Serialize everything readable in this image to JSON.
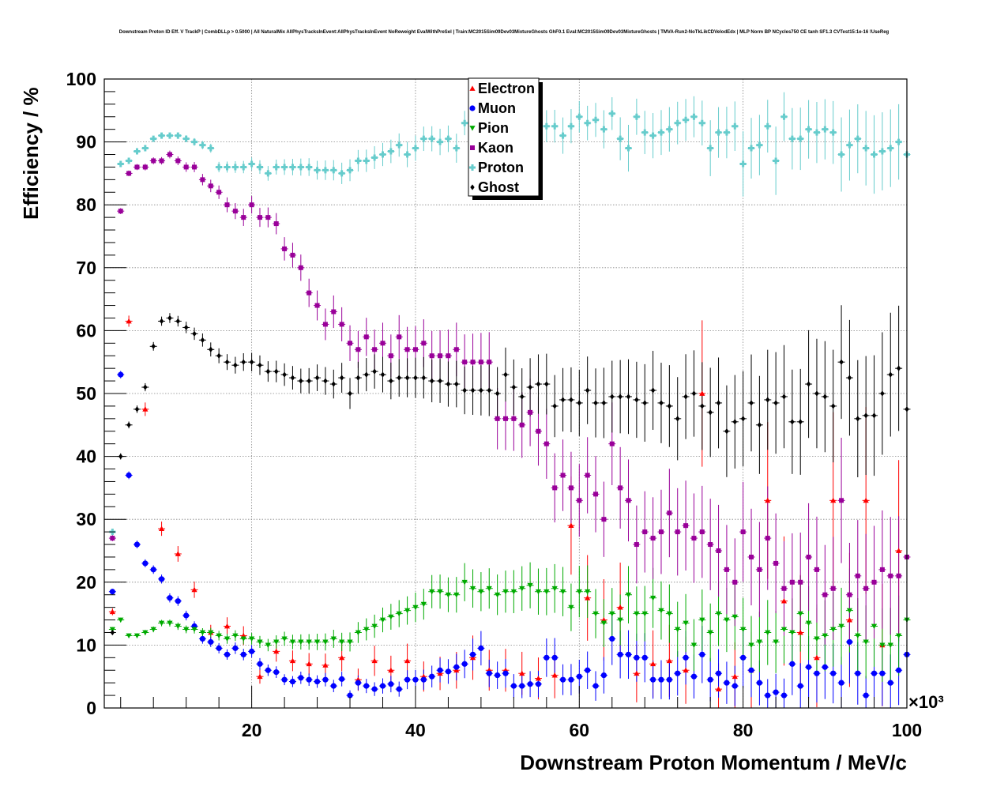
{
  "chart_data": {
    "type": "scatter",
    "title": "Downstream Proton ID Eff. V TrackP | CombDLLp > 0.5000 | All NaturalMix AllPhysTracksInEvent:AllPhysTracksInEvent NoReweight EvalWithPreSel | Train:MC2015Sim09Dev03MixtureGhosts GhF0.1 Eval:MC2015Sim09Dev03MixtureGhosts | TMVA-Run2-NoTkLikCDVelodEdx | MLP Norm BP NCycles750 CE tanh SF1.3 CVTest15:1e-16 !UseReg",
    "xlabel": "Downstream Proton Momentum / MeV/c",
    "ylabel": "Efficiency / %",
    "x_multiplier_label": "×10³",
    "xlim": [
      2000,
      100000
    ],
    "ylim": [
      0,
      100
    ],
    "xticks": [
      20000,
      40000,
      60000,
      80000,
      100000
    ],
    "xtick_labels": [
      "20",
      "40",
      "60",
      "80",
      "100"
    ],
    "yticks": [
      0,
      10,
      20,
      30,
      40,
      50,
      60,
      70,
      80,
      90,
      100
    ],
    "grid": true,
    "legend_position": "top-center",
    "series": [
      {
        "name": "Electron",
        "color": "#ff0000",
        "marker": "triangle-up",
        "x": [
          3000,
          5000,
          7000,
          9000,
          11000,
          13000,
          15000,
          17000,
          19000,
          21000,
          23000,
          25000,
          27000,
          29000,
          31000,
          33000,
          35000,
          37000,
          39000,
          41000,
          43000,
          45000,
          47000,
          49000,
          51000,
          53000,
          55000,
          57000,
          59000,
          61000,
          63000,
          65000,
          67000,
          69000,
          71000,
          73000,
          75000,
          77000,
          79000,
          81000,
          83000,
          85000,
          87000,
          89000,
          91000,
          93000,
          95000,
          97000,
          99000
        ],
        "y": [
          15.3,
          61.5,
          47.5,
          28.5,
          24.5,
          18.8,
          12,
          13,
          11.5,
          5,
          9,
          7.5,
          7,
          6.8,
          8,
          4.5,
          7.5,
          6,
          7.5,
          5,
          5.5,
          6,
          8,
          6,
          6,
          5.5,
          4.7,
          5.2,
          29,
          17.5,
          14,
          16,
          5.5,
          7,
          7.5,
          6,
          50,
          3,
          5,
          6,
          33,
          17,
          12,
          8,
          33,
          14,
          33,
          10,
          25
        ]
      },
      {
        "name": "Muon",
        "color": "#0000ff",
        "marker": "circle",
        "x": [
          3000,
          4000,
          5000,
          6000,
          7000,
          8000,
          9000,
          10000,
          11000,
          12000,
          13000,
          14000,
          15000,
          16000,
          17000,
          18000,
          19000,
          20000,
          21000,
          22000,
          23000,
          24000,
          25000,
          26000,
          27000,
          28000,
          29000,
          30000,
          31000,
          32000,
          33000,
          34000,
          35000,
          36000,
          37000,
          38000,
          39000,
          40000,
          41000,
          42000,
          43000,
          44000,
          45000,
          46000,
          47000,
          48000,
          49000,
          50000,
          51000,
          52000,
          53000,
          54000,
          55000,
          56000,
          57000,
          58000,
          59000,
          60000,
          61000,
          62000,
          63000,
          64000,
          65000,
          66000,
          67000,
          68000,
          69000,
          70000,
          71000,
          72000,
          73000,
          74000,
          75000,
          76000,
          77000,
          78000,
          79000,
          80000,
          81000,
          82000,
          83000,
          84000,
          85000,
          86000,
          87000,
          88000,
          89000,
          90000,
          91000,
          92000,
          93000,
          94000,
          95000,
          96000,
          97000,
          98000,
          99000,
          100000
        ],
        "y": [
          18.5,
          53,
          37,
          26,
          23,
          22,
          20.5,
          17.5,
          17,
          14.7,
          13,
          11,
          10.5,
          9.5,
          8.5,
          9.5,
          8.5,
          9,
          7,
          6,
          5.7,
          4.5,
          4.2,
          4.8,
          4.5,
          4.2,
          4.5,
          3.5,
          4.6,
          2,
          4,
          3.5,
          3,
          3.5,
          3.8,
          3,
          4.5,
          4.5,
          4.5,
          5,
          6,
          5.8,
          6.5,
          7,
          8.5,
          9.5,
          5.5,
          5.2,
          5.5,
          3.5,
          3.5,
          3.8,
          3.8,
          8,
          8,
          4.5,
          4.5,
          5,
          6,
          3.5,
          5.2,
          11,
          8.5,
          8.5,
          8,
          8,
          4.5,
          4.5,
          4.5,
          5.5,
          8,
          5,
          8.5,
          4.5,
          5.5,
          4,
          3.5,
          8,
          6,
          4,
          2,
          2.5,
          2,
          7,
          3.5,
          6.5,
          5.5,
          6.5,
          5.5,
          4,
          10.5,
          5.5,
          2,
          5.5,
          5.5,
          4,
          6,
          8.5
        ]
      },
      {
        "name": "Pion",
        "color": "#00aa00",
        "marker": "triangle-down",
        "x": [
          3000,
          4000,
          5000,
          6000,
          7000,
          8000,
          9000,
          10000,
          11000,
          12000,
          13000,
          14000,
          15000,
          16000,
          17000,
          18000,
          19000,
          20000,
          21000,
          22000,
          23000,
          24000,
          25000,
          26000,
          27000,
          28000,
          29000,
          30000,
          31000,
          32000,
          33000,
          34000,
          35000,
          36000,
          37000,
          38000,
          39000,
          40000,
          41000,
          42000,
          43000,
          44000,
          45000,
          46000,
          47000,
          48000,
          49000,
          50000,
          51000,
          52000,
          53000,
          54000,
          55000,
          56000,
          57000,
          58000,
          59000,
          60000,
          61000,
          62000,
          63000,
          64000,
          65000,
          66000,
          67000,
          68000,
          69000,
          70000,
          71000,
          72000,
          73000,
          74000,
          75000,
          76000,
          77000,
          78000,
          79000,
          80000,
          81000,
          82000,
          83000,
          84000,
          85000,
          86000,
          87000,
          88000,
          89000,
          90000,
          91000,
          92000,
          93000,
          94000,
          95000,
          96000,
          97000,
          98000,
          99000,
          100000
        ],
        "y": [
          12.5,
          14,
          11.5,
          11.5,
          12,
          12.5,
          13.5,
          13.5,
          13,
          12.5,
          12.5,
          12,
          12,
          11.5,
          11,
          11.5,
          11,
          11,
          10.5,
          10,
          10.5,
          11,
          10.5,
          10.5,
          10.5,
          10.5,
          10.5,
          11,
          10.5,
          10.5,
          12,
          12.5,
          13,
          14,
          14.5,
          15,
          15.5,
          16,
          16.5,
          18.5,
          18.5,
          18,
          18,
          20,
          19,
          18.5,
          19,
          18,
          18.5,
          18.5,
          19,
          19.5,
          18.5,
          18.5,
          19,
          18.5,
          16,
          18.5,
          18.5,
          15,
          13.5,
          15,
          14,
          18,
          15,
          15,
          17.5,
          15.5,
          15,
          12.5,
          13.5,
          10,
          14,
          12,
          15,
          14,
          14.5,
          12.5,
          10,
          10.5,
          12,
          10.5,
          12.5,
          12,
          15,
          13.5,
          11,
          11.5,
          12.5,
          13,
          15.5,
          11.5,
          10.5,
          13,
          10,
          10,
          11.5,
          14
        ]
      },
      {
        "name": "Kaon",
        "color": "#990099",
        "marker": "square",
        "x": [
          3000,
          4000,
          5000,
          6000,
          7000,
          8000,
          9000,
          10000,
          11000,
          12000,
          13000,
          14000,
          15000,
          16000,
          17000,
          18000,
          19000,
          20000,
          21000,
          22000,
          23000,
          24000,
          25000,
          26000,
          27000,
          28000,
          29000,
          30000,
          31000,
          32000,
          33000,
          34000,
          35000,
          36000,
          37000,
          38000,
          39000,
          40000,
          41000,
          42000,
          43000,
          44000,
          45000,
          46000,
          47000,
          48000,
          49000,
          50000,
          51000,
          52000,
          53000,
          54000,
          55000,
          56000,
          57000,
          58000,
          59000,
          60000,
          61000,
          62000,
          63000,
          64000,
          65000,
          66000,
          67000,
          68000,
          69000,
          70000,
          71000,
          72000,
          73000,
          74000,
          75000,
          76000,
          77000,
          78000,
          79000,
          80000,
          81000,
          82000,
          83000,
          84000,
          85000,
          86000,
          87000,
          88000,
          89000,
          90000,
          91000,
          92000,
          93000,
          94000,
          95000,
          96000,
          97000,
          98000,
          99000,
          100000
        ],
        "y": [
          27,
          79,
          85,
          86,
          86,
          87,
          87,
          88,
          87,
          86,
          86,
          84,
          83,
          82,
          80,
          79,
          78,
          80,
          78,
          78,
          77,
          73,
          72,
          70,
          66,
          64,
          61,
          63,
          61,
          58,
          57,
          59,
          57,
          58,
          56,
          59,
          57,
          57,
          58,
          56,
          56,
          56,
          57,
          55,
          55,
          55,
          55,
          46,
          46,
          46,
          45,
          47,
          44,
          42,
          35,
          37,
          35,
          33,
          37,
          34,
          30,
          42,
          35,
          33,
          26,
          28,
          27,
          28,
          31,
          28,
          29,
          27,
          28,
          26,
          25,
          22,
          20,
          28,
          24,
          22,
          27,
          23,
          19,
          20,
          20,
          24,
          22,
          18,
          19,
          33,
          18,
          21,
          19,
          20,
          22,
          21,
          21,
          24
        ]
      },
      {
        "name": "Proton",
        "color": "#66cccc",
        "marker": "cross",
        "x": [
          3000,
          4000,
          5000,
          6000,
          7000,
          8000,
          9000,
          10000,
          11000,
          12000,
          13000,
          14000,
          15000,
          16000,
          17000,
          18000,
          19000,
          20000,
          21000,
          22000,
          23000,
          24000,
          25000,
          26000,
          27000,
          28000,
          29000,
          30000,
          31000,
          32000,
          33000,
          34000,
          35000,
          36000,
          37000,
          38000,
          39000,
          40000,
          41000,
          42000,
          43000,
          44000,
          45000,
          46000,
          47000,
          48000,
          49000,
          50000,
          51000,
          52000,
          53000,
          54000,
          55000,
          56000,
          57000,
          58000,
          59000,
          60000,
          61000,
          62000,
          63000,
          64000,
          65000,
          66000,
          67000,
          68000,
          69000,
          70000,
          71000,
          72000,
          73000,
          74000,
          75000,
          76000,
          77000,
          78000,
          79000,
          80000,
          81000,
          82000,
          83000,
          84000,
          85000,
          86000,
          87000,
          88000,
          89000,
          90000,
          91000,
          92000,
          93000,
          94000,
          95000,
          96000,
          97000,
          98000,
          99000,
          100000
        ],
        "y": [
          28,
          86.5,
          87,
          88.5,
          89,
          90.5,
          91,
          91,
          91,
          90.5,
          90,
          89.5,
          89,
          86,
          86,
          86,
          86,
          86.5,
          86,
          85,
          86,
          86,
          86,
          86,
          86,
          85.5,
          85.5,
          85.5,
          85,
          85.5,
          87,
          87,
          87.5,
          88,
          88.5,
          89.5,
          88,
          89,
          90.5,
          90.5,
          90,
          90.5,
          89,
          93,
          92,
          91,
          93,
          91,
          92,
          91.5,
          93,
          94,
          92,
          92.5,
          92.5,
          91,
          92.5,
          94,
          93,
          93.5,
          92,
          94.5,
          90.5,
          89,
          94,
          91.5,
          91,
          91.5,
          92,
          93,
          93.5,
          94,
          93,
          89,
          91.5,
          91.5,
          92.5,
          86.5,
          89,
          89.5,
          92.5,
          87,
          94,
          90.5,
          90.5,
          92,
          91.5,
          92,
          91.5,
          88,
          89.5,
          90.5,
          89,
          88,
          88.5,
          89,
          90,
          88
        ]
      },
      {
        "name": "Ghost",
        "color": "#000000",
        "marker": "diamond",
        "x": [
          3000,
          4000,
          5000,
          6000,
          7000,
          8000,
          9000,
          10000,
          11000,
          12000,
          13000,
          14000,
          15000,
          16000,
          17000,
          18000,
          19000,
          20000,
          21000,
          22000,
          23000,
          24000,
          25000,
          26000,
          27000,
          28000,
          29000,
          30000,
          31000,
          32000,
          33000,
          34000,
          35000,
          36000,
          37000,
          38000,
          39000,
          40000,
          41000,
          42000,
          43000,
          44000,
          45000,
          46000,
          47000,
          48000,
          49000,
          50000,
          51000,
          52000,
          53000,
          54000,
          55000,
          56000,
          57000,
          58000,
          59000,
          60000,
          61000,
          62000,
          63000,
          64000,
          65000,
          66000,
          67000,
          68000,
          69000,
          70000,
          71000,
          72000,
          73000,
          74000,
          75000,
          76000,
          77000,
          78000,
          79000,
          80000,
          81000,
          82000,
          83000,
          84000,
          85000,
          86000,
          87000,
          88000,
          89000,
          90000,
          91000,
          92000,
          93000,
          94000,
          95000,
          96000,
          97000,
          98000,
          99000,
          100000
        ],
        "y": [
          12,
          40,
          45,
          47.5,
          51,
          57.5,
          61.5,
          62,
          61.5,
          60.5,
          59.5,
          58.5,
          57,
          56,
          55,
          54.5,
          55,
          55,
          54.5,
          53.5,
          53.5,
          53,
          52.5,
          52,
          52,
          52.5,
          52,
          51.5,
          52.5,
          50,
          52.5,
          53,
          53.5,
          53,
          52,
          52.5,
          52.5,
          52.5,
          52.5,
          52,
          52,
          51.5,
          51.5,
          50.5,
          50.5,
          50.5,
          50.5,
          50,
          53,
          51,
          49.5,
          51,
          51.5,
          51.5,
          48,
          49,
          49,
          48.5,
          50.5,
          48.5,
          48.5,
          49.5,
          49.5,
          49.5,
          49,
          48.5,
          50.5,
          48.5,
          48,
          46,
          49.5,
          50,
          48,
          47,
          48.5,
          44,
          45.5,
          46,
          48.5,
          45,
          49,
          48.5,
          49.5,
          45.5,
          45.5,
          51.5,
          50,
          49.5,
          48,
          55,
          52.5,
          46,
          46.5,
          46.5,
          50,
          53,
          54,
          47.5
        ]
      }
    ]
  }
}
